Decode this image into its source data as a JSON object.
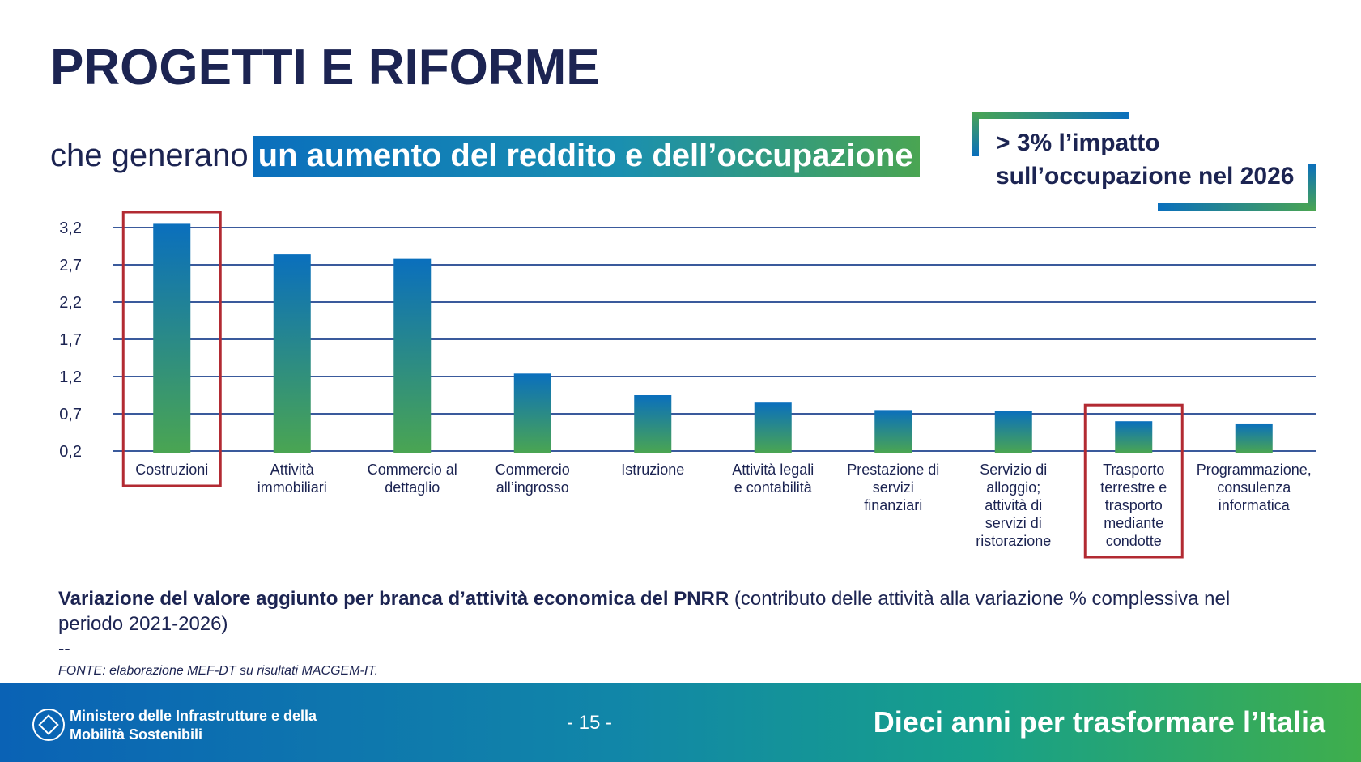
{
  "header": {
    "title": "PROGETTI E RIFORME",
    "subtitle_plain": "che generano",
    "subtitle_highlight": "un aumento del reddito e dell’occupazione"
  },
  "callout": {
    "line1": "> 3% l’impatto",
    "line2": "sull’occupazione nel 2026"
  },
  "chart_data": {
    "type": "bar",
    "title": "",
    "xlabel": "",
    "ylabel": "",
    "ylim": [
      0.2,
      3.2
    ],
    "yticks": [
      "3,2",
      "2,7",
      "2,2",
      "1,7",
      "1,2",
      "0,7",
      "0,2"
    ],
    "ytick_values": [
      3.2,
      2.7,
      2.2,
      1.7,
      1.2,
      0.7,
      0.2
    ],
    "categories": [
      [
        "Costruzioni"
      ],
      [
        "Attività",
        "immobiliari"
      ],
      [
        "Commercio al",
        "dettaglio"
      ],
      [
        "Commercio",
        "all’ingrosso"
      ],
      [
        "Istruzione"
      ],
      [
        "Attività legali",
        "e contabilità"
      ],
      [
        "Prestazione di",
        "servizi",
        "finanziari"
      ],
      [
        "Servizio di",
        "alloggio;",
        "attività di",
        "servizi di",
        "ristorazione"
      ],
      [
        "Trasporto",
        "terrestre e",
        "trasporto",
        "mediante",
        "condotte"
      ],
      [
        "Programmazione,",
        "consulenza",
        "informatica"
      ]
    ],
    "values": [
      3.25,
      2.84,
      2.78,
      1.24,
      0.95,
      0.85,
      0.75,
      0.74,
      0.6,
      0.57
    ],
    "highlighted": [
      0,
      8
    ],
    "bar_gradient": [
      "#0a6fbd",
      "#4aa552"
    ],
    "highlight_color": "#b22a32",
    "grid_color": "#3a5a9c"
  },
  "caption": {
    "bold": "Variazione del valore aggiunto per branca d’attività economica del PNRR",
    "normal": " (contributo delle attività alla variazione % complessiva nel periodo 2021-2026)",
    "dashes": "--",
    "source": "FONTE: elaborazione MEF-DT su risultati MACGEM-IT."
  },
  "footer": {
    "ministry_line1": "Ministero delle Infrastrutture e della",
    "ministry_line2": "Mobilità Sostenibili",
    "page": "- 15 -",
    "tagline": "Dieci anni per trasformare l’Italia"
  }
}
